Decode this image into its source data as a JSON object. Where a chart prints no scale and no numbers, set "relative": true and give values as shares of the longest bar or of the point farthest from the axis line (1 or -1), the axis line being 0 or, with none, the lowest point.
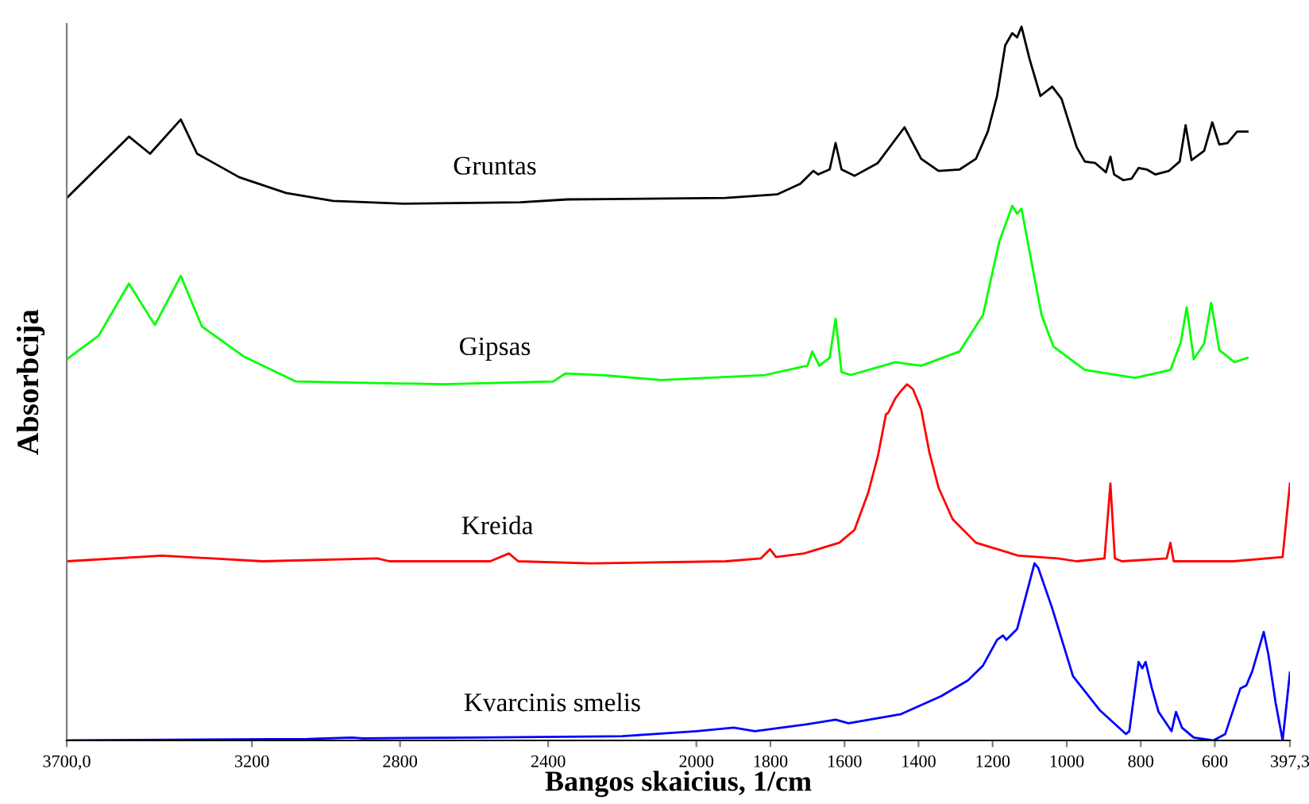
{
  "chart_data": {
    "type": "line",
    "relative": true,
    "xlabel": "Bangos skaicius, 1/cm",
    "ylabel": "Absorbcija",
    "xlim": [
      3700,
      397.3
    ],
    "xticks": [
      {
        "value": 3700,
        "label": "3700,0"
      },
      3200,
      2800,
      2400,
      2000,
      1800,
      1600,
      1400,
      1200,
      1000,
      800,
      600,
      {
        "value": 397.3,
        "label": "397,3"
      }
    ],
    "grid": false,
    "legend": false,
    "marker": "none",
    "line_style": "solid",
    "series": [
      {
        "name": "Gruntas",
        "color": "#000000",
        "x": [
          3700,
          3532,
          3475,
          3392,
          3348,
          3234,
          3108,
          2981,
          2791,
          2475,
          2348,
          1921,
          1782,
          1719,
          1684,
          1671,
          1640,
          1624,
          1608,
          1573,
          1510,
          1438,
          1393,
          1346,
          1289,
          1245,
          1213,
          1188,
          1166,
          1147,
          1134,
          1122,
          1100,
          1071,
          1039,
          1014,
          973,
          951,
          923,
          894,
          882,
          872,
          847,
          825,
          806,
          784,
          761,
          724,
          695,
          679,
          663,
          629,
          607,
          588,
          566,
          540,
          512
        ],
        "values": [
          0.76,
          0.846,
          0.822,
          0.87,
          0.822,
          0.789,
          0.767,
          0.756,
          0.752,
          0.754,
          0.758,
          0.76,
          0.765,
          0.78,
          0.798,
          0.793,
          0.8,
          0.837,
          0.8,
          0.791,
          0.809,
          0.859,
          0.815,
          0.798,
          0.8,
          0.815,
          0.853,
          0.903,
          0.974,
          0.991,
          0.985,
          1.0,
          0.954,
          0.903,
          0.916,
          0.899,
          0.831,
          0.811,
          0.809,
          0.796,
          0.818,
          0.793,
          0.785,
          0.787,
          0.802,
          0.8,
          0.793,
          0.798,
          0.811,
          0.862,
          0.813,
          0.826,
          0.866,
          0.835,
          0.837,
          0.853,
          0.853
        ]
      },
      {
        "name": "Gipsas",
        "color": "#00ff00",
        "x": [
          3700,
          3614,
          3532,
          3462,
          3392,
          3335,
          3241,
          3222,
          3082,
          2684,
          2386,
          2354,
          2259,
          2095,
          1814,
          1719,
          1700,
          1687,
          1668,
          1640,
          1624,
          1608,
          1583,
          1463,
          1393,
          1289,
          1226,
          1182,
          1147,
          1134,
          1122,
          1100,
          1068,
          1036,
          1008,
          951,
          815,
          720,
          692,
          676,
          657,
          629,
          610,
          588,
          547,
          512
        ],
        "values": [
          0.534,
          0.567,
          0.64,
          0.582,
          0.651,
          0.58,
          0.545,
          0.538,
          0.503,
          0.499,
          0.503,
          0.514,
          0.512,
          0.505,
          0.512,
          0.523,
          0.525,
          0.545,
          0.525,
          0.536,
          0.591,
          0.516,
          0.512,
          0.53,
          0.525,
          0.545,
          0.596,
          0.699,
          0.749,
          0.738,
          0.745,
          0.684,
          0.596,
          0.552,
          0.541,
          0.519,
          0.508,
          0.519,
          0.558,
          0.607,
          0.534,
          0.556,
          0.613,
          0.547,
          0.53,
          0.536
        ]
      },
      {
        "name": "Kreida",
        "color": "#ff0000",
        "x": [
          3700,
          3443,
          3171,
          2861,
          2829,
          2557,
          2506,
          2481,
          2285,
          1921,
          1826,
          1801,
          1785,
          1709,
          1614,
          1573,
          1536,
          1510,
          1488,
          1482,
          1463,
          1447,
          1431,
          1415,
          1393,
          1371,
          1346,
          1308,
          1245,
          1131,
          1024,
          973,
          898,
          882,
          870,
          851,
          730,
          720,
          711,
          550,
          417,
          397.3
        ],
        "values": [
          0.251,
          0.259,
          0.251,
          0.255,
          0.251,
          0.251,
          0.262,
          0.251,
          0.248,
          0.251,
          0.255,
          0.268,
          0.257,
          0.262,
          0.277,
          0.295,
          0.347,
          0.398,
          0.457,
          0.459,
          0.479,
          0.49,
          0.499,
          0.492,
          0.464,
          0.404,
          0.354,
          0.31,
          0.277,
          0.259,
          0.255,
          0.251,
          0.255,
          0.36,
          0.255,
          0.251,
          0.255,
          0.277,
          0.251,
          0.251,
          0.257,
          0.36
        ]
      },
      {
        "name": "Kvarcinis smelis",
        "color": "#0000ff",
        "x": [
          3700,
          3050,
          2930,
          2900,
          2600,
          2200,
          2000,
          1899,
          1842,
          1709,
          1624,
          1589,
          1447,
          1339,
          1267,
          1226,
          1188,
          1172,
          1163,
          1134,
          1115,
          1087,
          1077,
          1039,
          983,
          910,
          840,
          831,
          815,
          806,
          796,
          787,
          771,
          752,
          717,
          705,
          689,
          657,
          604,
          572,
          531,
          515,
          499,
          468,
          455,
          436,
          417,
          397.3
        ],
        "values": [
          0.0,
          0.002,
          0.004,
          0.003,
          0.004,
          0.006,
          0.013,
          0.018,
          0.013,
          0.022,
          0.029,
          0.024,
          0.037,
          0.062,
          0.084,
          0.105,
          0.141,
          0.147,
          0.141,
          0.156,
          0.193,
          0.248,
          0.242,
          0.185,
          0.09,
          0.042,
          0.009,
          0.013,
          0.075,
          0.11,
          0.101,
          0.11,
          0.075,
          0.04,
          0.013,
          0.04,
          0.018,
          0.004,
          0.0,
          0.009,
          0.073,
          0.077,
          0.097,
          0.152,
          0.119,
          0.053,
          0.0,
          0.095
        ]
      }
    ]
  }
}
